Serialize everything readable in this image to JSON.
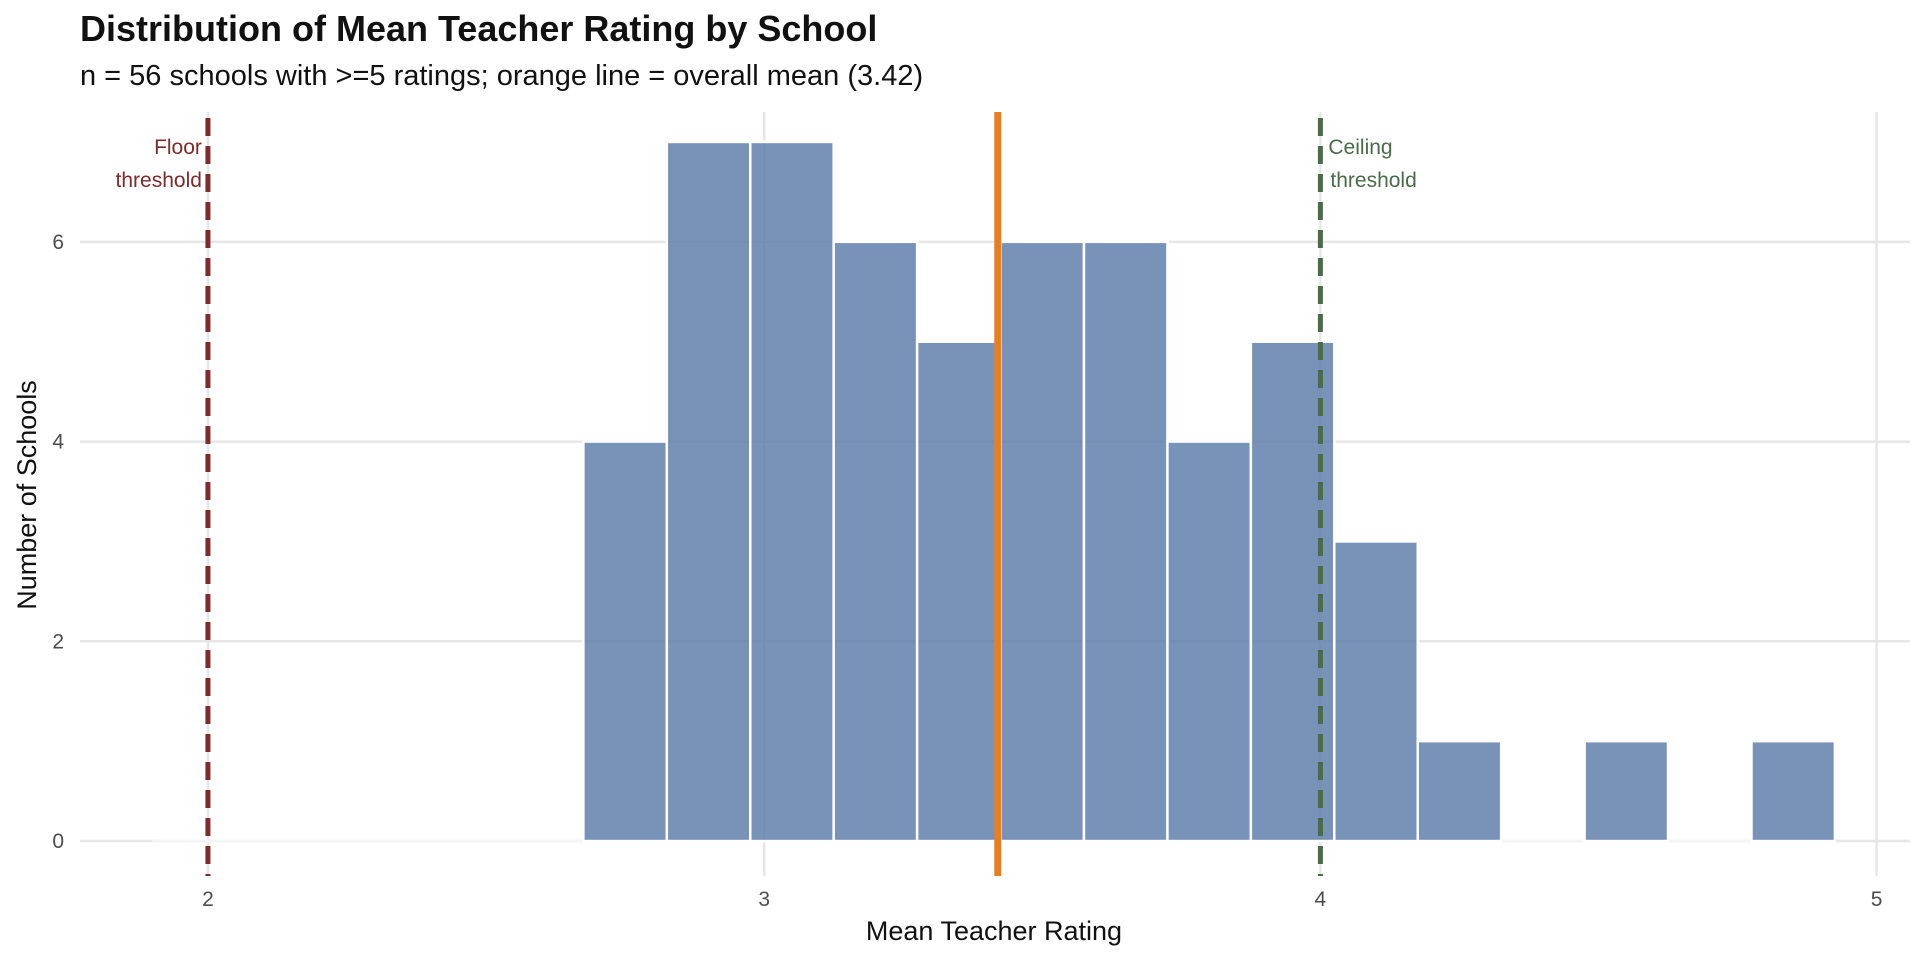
{
  "chart_data": {
    "type": "bar",
    "title": "Distribution of Mean Teacher Rating by School",
    "subtitle": "n = 56 schools with >=5 ratings; orange line = overall mean (3.42)",
    "xlabel": "Mean Teacher Rating",
    "ylabel": "Number of Schools",
    "xlim": [
      1.77,
      5.06
    ],
    "ylim": [
      -0.35,
      7.3
    ],
    "x_ticks": [
      2,
      3,
      4,
      5
    ],
    "y_ticks": [
      0,
      2,
      4,
      6
    ],
    "x_tick_labels": [
      "2",
      "3",
      "4",
      "5"
    ],
    "y_tick_labels": [
      "0",
      "2",
      "4",
      "6"
    ],
    "grid": true,
    "bin_width": 0.15,
    "bins": [
      {
        "x0": 2.675,
        "x1": 2.825,
        "count": 4
      },
      {
        "x0": 2.825,
        "x1": 2.975,
        "count": 7
      },
      {
        "x0": 2.975,
        "x1": 3.125,
        "count": 7
      },
      {
        "x0": 3.125,
        "x1": 3.275,
        "count": 6
      },
      {
        "x0": 3.275,
        "x1": 3.425,
        "count": 5
      },
      {
        "x0": 3.425,
        "x1": 3.575,
        "count": 6
      },
      {
        "x0": 3.575,
        "x1": 3.725,
        "count": 6
      },
      {
        "x0": 3.725,
        "x1": 3.875,
        "count": 4
      },
      {
        "x0": 3.875,
        "x1": 4.025,
        "count": 5
      },
      {
        "x0": 4.025,
        "x1": 4.175,
        "count": 3
      },
      {
        "x0": 4.175,
        "x1": 4.325,
        "count": 1
      },
      {
        "x0": 4.325,
        "x1": 4.475,
        "count": 0
      },
      {
        "x0": 4.475,
        "x1": 4.625,
        "count": 1
      },
      {
        "x0": 4.625,
        "x1": 4.775,
        "count": 0
      },
      {
        "x0": 4.775,
        "x1": 4.925,
        "count": 1
      }
    ],
    "zero_segment": [
      1.9,
      4.925
    ],
    "mean_line": {
      "x": 3.42,
      "color": "#e67e22"
    },
    "reference_lines": [
      {
        "x": 2.0,
        "label_lines": [
          "Floor",
          "threshold"
        ],
        "color": "#7b2d2d",
        "label_side": "left"
      },
      {
        "x": 4.0,
        "label_lines": [
          "Ceiling",
          "threshold"
        ],
        "color": "#4a6b4a",
        "label_side": "right"
      }
    ],
    "bar_color": "#5c7ba8",
    "bar_opacity": 0.82
  }
}
